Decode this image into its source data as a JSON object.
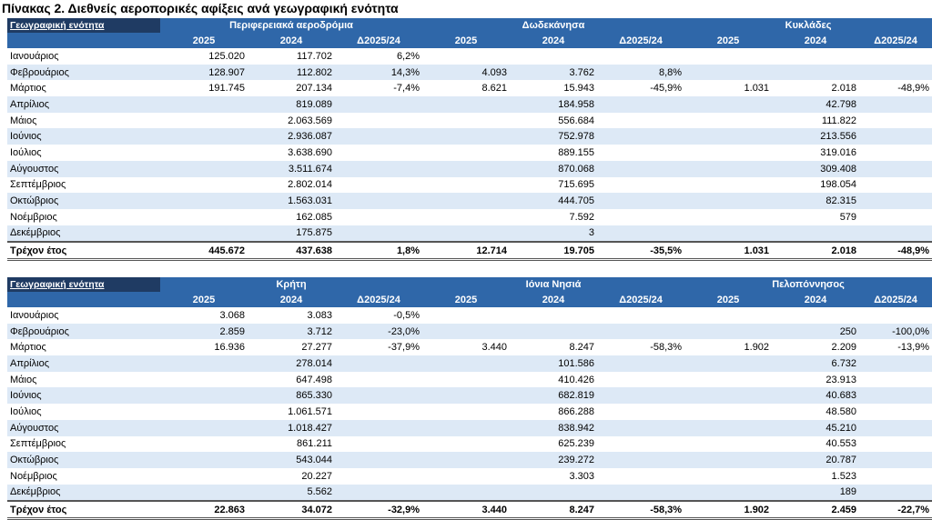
{
  "title": "Πίνακας 2. Διεθνείς αεροπορικές αφίξεις ανά γεωγραφική ενότητα",
  "tables": [
    {
      "label": "Γεωγραφική ενότητα",
      "regions": [
        "Περιφερειακά αεροδρόμια",
        "Δωδεκάνησα",
        "Κυκλάδες"
      ],
      "cols": [
        "2025",
        "2024",
        "Δ2025/24",
        "2025",
        "2024",
        "Δ2025/24",
        "2025",
        "2024",
        "Δ2025/24"
      ],
      "rows": [
        {
          "month": "Ιανουάριος",
          "v": [
            "125.020",
            "117.702",
            "6,2%",
            "",
            "",
            "",
            "",
            "",
            ""
          ]
        },
        {
          "month": "Φεβρουάριος",
          "v": [
            "128.907",
            "112.802",
            "14,3%",
            "4.093",
            "3.762",
            "8,8%",
            "",
            "",
            ""
          ]
        },
        {
          "month": "Μάρτιος",
          "v": [
            "191.745",
            "207.134",
            "-7,4%",
            "8.621",
            "15.943",
            "-45,9%",
            "1.031",
            "2.018",
            "-48,9%"
          ]
        },
        {
          "month": "Απρίλιος",
          "v": [
            "",
            "819.089",
            "",
            "",
            "184.958",
            "",
            "",
            "42.798",
            ""
          ]
        },
        {
          "month": "Μάιος",
          "v": [
            "",
            "2.063.569",
            "",
            "",
            "556.684",
            "",
            "",
            "111.822",
            ""
          ]
        },
        {
          "month": "Ιούνιος",
          "v": [
            "",
            "2.936.087",
            "",
            "",
            "752.978",
            "",
            "",
            "213.556",
            ""
          ]
        },
        {
          "month": "Ιούλιος",
          "v": [
            "",
            "3.638.690",
            "",
            "",
            "889.155",
            "",
            "",
            "319.016",
            ""
          ]
        },
        {
          "month": "Αύγουστος",
          "v": [
            "",
            "3.511.674",
            "",
            "",
            "870.068",
            "",
            "",
            "309.408",
            ""
          ]
        },
        {
          "month": "Σεπτέμβριος",
          "v": [
            "",
            "2.802.014",
            "",
            "",
            "715.695",
            "",
            "",
            "198.054",
            ""
          ]
        },
        {
          "month": "Οκτώβριος",
          "v": [
            "",
            "1.563.031",
            "",
            "",
            "444.705",
            "",
            "",
            "82.315",
            ""
          ]
        },
        {
          "month": "Νοέμβριος",
          "v": [
            "",
            "162.085",
            "",
            "",
            "7.592",
            "",
            "",
            "579",
            ""
          ]
        },
        {
          "month": "Δεκέμβριος",
          "v": [
            "",
            "175.875",
            "",
            "",
            "3",
            "",
            "",
            "",
            ""
          ]
        }
      ],
      "total": {
        "month": "Τρέχον έτος",
        "v": [
          "445.672",
          "437.638",
          "1,8%",
          "12.714",
          "19.705",
          "-35,5%",
          "1.031",
          "2.018",
          "-48,9%"
        ]
      }
    },
    {
      "label": "Γεωγραφική ενότητα",
      "regions": [
        "Κρήτη",
        "Ιόνια Νησιά",
        "Πελοπόννησος"
      ],
      "cols": [
        "2025",
        "2024",
        "Δ2025/24",
        "2025",
        "2024",
        "Δ2025/24",
        "2025",
        "2024",
        "Δ2025/24"
      ],
      "rows": [
        {
          "month": "Ιανουάριος",
          "v": [
            "3.068",
            "3.083",
            "-0,5%",
            "",
            "",
            "",
            "",
            "",
            ""
          ]
        },
        {
          "month": "Φεβρουάριος",
          "v": [
            "2.859",
            "3.712",
            "-23,0%",
            "",
            "",
            "",
            "",
            "250",
            "-100,0%"
          ]
        },
        {
          "month": "Μάρτιος",
          "v": [
            "16.936",
            "27.277",
            "-37,9%",
            "3.440",
            "8.247",
            "-58,3%",
            "1.902",
            "2.209",
            "-13,9%"
          ]
        },
        {
          "month": "Απρίλιος",
          "v": [
            "",
            "278.014",
            "",
            "",
            "101.586",
            "",
            "",
            "6.732",
            ""
          ]
        },
        {
          "month": "Μάιος",
          "v": [
            "",
            "647.498",
            "",
            "",
            "410.426",
            "",
            "",
            "23.913",
            ""
          ]
        },
        {
          "month": "Ιούνιος",
          "v": [
            "",
            "865.330",
            "",
            "",
            "682.819",
            "",
            "",
            "40.683",
            ""
          ]
        },
        {
          "month": "Ιούλιος",
          "v": [
            "",
            "1.061.571",
            "",
            "",
            "866.288",
            "",
            "",
            "48.580",
            ""
          ]
        },
        {
          "month": "Αύγουστος",
          "v": [
            "",
            "1.018.427",
            "",
            "",
            "838.942",
            "",
            "",
            "45.210",
            ""
          ]
        },
        {
          "month": "Σεπτέμβριος",
          "v": [
            "",
            "861.211",
            "",
            "",
            "625.239",
            "",
            "",
            "40.553",
            ""
          ]
        },
        {
          "month": "Οκτώβριος",
          "v": [
            "",
            "543.044",
            "",
            "",
            "239.272",
            "",
            "",
            "20.787",
            ""
          ]
        },
        {
          "month": "Νοέμβριος",
          "v": [
            "",
            "20.227",
            "",
            "",
            "3.303",
            "",
            "",
            "1.523",
            ""
          ]
        },
        {
          "month": "Δεκέμβριος",
          "v": [
            "",
            "5.562",
            "",
            "",
            "",
            "",
            "",
            "189",
            ""
          ]
        }
      ],
      "total": {
        "month": "Τρέχον έτος",
        "v": [
          "22.863",
          "34.072",
          "-32,9%",
          "3.440",
          "8.247",
          "-58,3%",
          "1.902",
          "2.459",
          "-22,7%"
        ]
      }
    }
  ]
}
